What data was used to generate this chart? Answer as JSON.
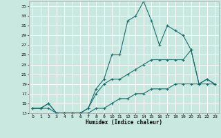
{
  "xlabel": "Humidex (Indice chaleur)",
  "background_color": "#c8e8e0",
  "grid_color": "#ffffff",
  "line_color": "#1a6e6e",
  "x_values": [
    0,
    1,
    2,
    3,
    4,
    5,
    6,
    7,
    8,
    9,
    10,
    11,
    12,
    13,
    14,
    15,
    16,
    17,
    18,
    19,
    20,
    21,
    22,
    23
  ],
  "series1": [
    14,
    14,
    15,
    13,
    13,
    13,
    13,
    14,
    18,
    20,
    25,
    25,
    32,
    33,
    36,
    32,
    27,
    31,
    30,
    29,
    26,
    19,
    20,
    19
  ],
  "series2": [
    14,
    14,
    15,
    13,
    13,
    13,
    13,
    14,
    17,
    19,
    20,
    20,
    21,
    22,
    23,
    24,
    24,
    24,
    24,
    24,
    26,
    19,
    20,
    19
  ],
  "series3": [
    14,
    14,
    14,
    13,
    13,
    13,
    13,
    13,
    14,
    14,
    15,
    16,
    16,
    17,
    17,
    18,
    18,
    18,
    19,
    19,
    19,
    19,
    19,
    19
  ],
  "ylim": [
    13,
    36
  ],
  "xlim": [
    -0.5,
    23.5
  ],
  "yticks": [
    13,
    15,
    17,
    19,
    21,
    23,
    25,
    27,
    29,
    31,
    33,
    35
  ],
  "xticks": [
    0,
    1,
    2,
    3,
    4,
    5,
    6,
    7,
    8,
    9,
    10,
    11,
    12,
    13,
    14,
    15,
    16,
    17,
    18,
    19,
    20,
    21,
    22,
    23
  ]
}
